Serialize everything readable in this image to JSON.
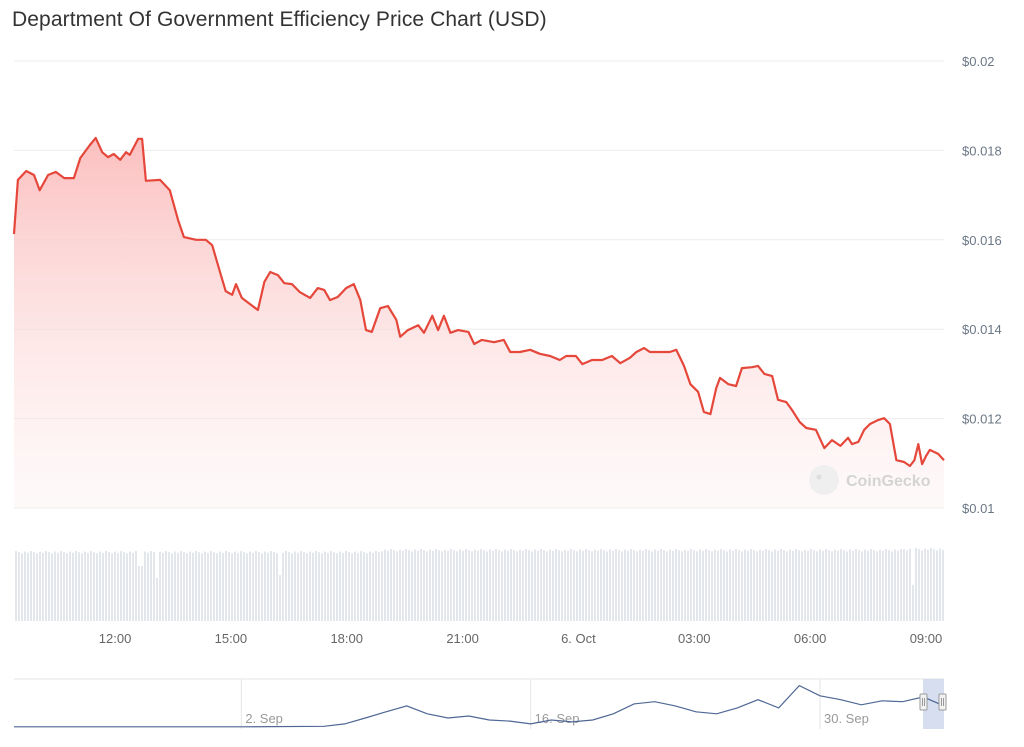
{
  "chart_data": {
    "type": "area",
    "title": "Department Of Government Efficiency Price Chart (USD)",
    "watermark": "CoinGecko",
    "colors": {
      "line": "#e5473b",
      "fill": "#fbcaca",
      "volume": "#e3e6ea",
      "navigator_line": "#4f6795",
      "navigator_mask": "#ccd6eb"
    },
    "grid": true,
    "ylim": [
      0.01,
      0.02
    ],
    "y_ticks": [
      "$0.02",
      "$0.018",
      "$0.016",
      "$0.014",
      "$0.012",
      "$0.01"
    ],
    "y_tick_values": [
      0.02,
      0.018,
      0.016,
      0.014,
      0.012,
      0.01
    ],
    "x_ticks": [
      "12:00",
      "15:00",
      "18:00",
      "21:00",
      "6. Oct",
      "03:00",
      "06:00",
      "09:00"
    ],
    "x_tick_times": [
      "Oct 5 12:00",
      "Oct 5 15:00",
      "Oct 5 18:00",
      "Oct 5 21:00",
      "Oct 6 00:00",
      "Oct 6 03:00",
      "Oct 6 06:00",
      "Oct 6 09:00"
    ],
    "xlim": [
      "Oct 5 09:23",
      "Oct 6 09:28"
    ],
    "series": [
      {
        "points": [
          [
            "Oct 5 09:23",
            0.01613
          ],
          [
            "Oct 5 09:29",
            0.01734
          ],
          [
            "Oct 5 09:42",
            0.01754
          ],
          [
            "Oct 5 09:54",
            0.01745
          ],
          [
            "Oct 5 10:03",
            0.01711
          ],
          [
            "Oct 5 10:16",
            0.01745
          ],
          [
            "Oct 5 10:28",
            0.01752
          ],
          [
            "Oct 5 10:41",
            0.01738
          ],
          [
            "Oct 5 10:56",
            0.01738
          ],
          [
            "Oct 5 11:06",
            0.01783
          ],
          [
            "Oct 5 11:21",
            0.01812
          ],
          [
            "Oct 5 11:30",
            0.01828
          ],
          [
            "Oct 5 11:40",
            0.01796
          ],
          [
            "Oct 5 11:49",
            0.01785
          ],
          [
            "Oct 5 11:58",
            0.01792
          ],
          [
            "Oct 5 12:08",
            0.01779
          ],
          [
            "Oct 5 12:17",
            0.01796
          ],
          [
            "Oct 5 12:23",
            0.0179
          ],
          [
            "Oct 5 12:36",
            0.01826
          ],
          [
            "Oct 5 12:42",
            0.01826
          ],
          [
            "Oct 5 12:48",
            0.01732
          ],
          [
            "Oct 5 13:10",
            0.01734
          ],
          [
            "Oct 5 13:25",
            0.01711
          ],
          [
            "Oct 5 13:38",
            0.01644
          ],
          [
            "Oct 5 13:47",
            0.01606
          ],
          [
            "Oct 5 14:06",
            0.016
          ],
          [
            "Oct 5 14:21",
            0.016
          ],
          [
            "Oct 5 14:31",
            0.01588
          ],
          [
            "Oct 5 14:43",
            0.01528
          ],
          [
            "Oct 5 14:52",
            0.01485
          ],
          [
            "Oct 5 15:02",
            0.01477
          ],
          [
            "Oct 5 15:08",
            0.01501
          ],
          [
            "Oct 5 15:17",
            0.0147
          ],
          [
            "Oct 5 15:30",
            0.01456
          ],
          [
            "Oct 5 15:42",
            0.01443
          ],
          [
            "Oct 5 15:52",
            0.01506
          ],
          [
            "Oct 5 16:01",
            0.01528
          ],
          [
            "Oct 5 16:13",
            0.01521
          ],
          [
            "Oct 5 16:23",
            0.01503
          ],
          [
            "Oct 5 16:35",
            0.01501
          ],
          [
            "Oct 5 16:47",
            0.01483
          ],
          [
            "Oct 5 17:03",
            0.0147
          ],
          [
            "Oct 5 17:15",
            0.01492
          ],
          [
            "Oct 5 17:25",
            0.01488
          ],
          [
            "Oct 5 17:34",
            0.01465
          ],
          [
            "Oct 5 17:46",
            0.01472
          ],
          [
            "Oct 5 17:59",
            0.01492
          ],
          [
            "Oct 5 18:11",
            0.01501
          ],
          [
            "Oct 5 18:21",
            0.01465
          ],
          [
            "Oct 5 18:30",
            0.01398
          ],
          [
            "Oct 5 18:39",
            0.01394
          ],
          [
            "Oct 5 18:52",
            0.01447
          ],
          [
            "Oct 5 19:04",
            0.01452
          ],
          [
            "Oct 5 19:17",
            0.01421
          ],
          [
            "Oct 5 19:23",
            0.01383
          ],
          [
            "Oct 5 19:35",
            0.01398
          ],
          [
            "Oct 5 19:51",
            0.01409
          ],
          [
            "Oct 5 20:00",
            0.01392
          ],
          [
            "Oct 5 20:13",
            0.0143
          ],
          [
            "Oct 5 20:22",
            0.01398
          ],
          [
            "Oct 5 20:31",
            0.0143
          ],
          [
            "Oct 5 20:41",
            0.01392
          ],
          [
            "Oct 5 20:53",
            0.01398
          ],
          [
            "Oct 5 21:09",
            0.01394
          ],
          [
            "Oct 5 21:18",
            0.01367
          ],
          [
            "Oct 5 21:30",
            0.01376
          ],
          [
            "Oct 5 21:49",
            0.01371
          ],
          [
            "Oct 5 22:04",
            0.01376
          ],
          [
            "Oct 5 22:14",
            0.01349
          ],
          [
            "Oct 5 22:29",
            0.01349
          ],
          [
            "Oct 5 22:45",
            0.01354
          ],
          [
            "Oct 5 23:00",
            0.01345
          ],
          [
            "Oct 5 23:16",
            0.0134
          ],
          [
            "Oct 5 23:31",
            0.01331
          ],
          [
            "Oct 5 23:41",
            0.0134
          ],
          [
            "Oct 5 23:56",
            0.0134
          ],
          [
            "Oct 6 00:06",
            0.01322
          ],
          [
            "Oct 6 00:21",
            0.01331
          ],
          [
            "Oct 6 00:37",
            0.01331
          ],
          [
            "Oct 6 00:52",
            0.0134
          ],
          [
            "Oct 6 01:05",
            0.01324
          ],
          [
            "Oct 6 01:20",
            0.01336
          ],
          [
            "Oct 6 01:30",
            0.01349
          ],
          [
            "Oct 6 01:42",
            0.01358
          ],
          [
            "Oct 6 01:51",
            0.01349
          ],
          [
            "Oct 6 02:07",
            0.01349
          ],
          [
            "Oct 6 02:22",
            0.01349
          ],
          [
            "Oct 6 02:32",
            0.01354
          ],
          [
            "Oct 6 02:44",
            0.01318
          ],
          [
            "Oct 6 02:54",
            0.01277
          ],
          [
            "Oct 6 03:06",
            0.0126
          ],
          [
            "Oct 6 03:15",
            0.01215
          ],
          [
            "Oct 6 03:25",
            0.0121
          ],
          [
            "Oct 6 03:34",
            0.01268
          ],
          [
            "Oct 6 03:40",
            0.01291
          ],
          [
            "Oct 6 03:53",
            0.01277
          ],
          [
            "Oct 6 04:05",
            0.01273
          ],
          [
            "Oct 6 04:14",
            0.01313
          ],
          [
            "Oct 6 04:30",
            0.01315
          ],
          [
            "Oct 6 04:39",
            0.01318
          ],
          [
            "Oct 6 04:49",
            0.013
          ],
          [
            "Oct 6 05:01",
            0.01295
          ],
          [
            "Oct 6 05:10",
            0.01242
          ],
          [
            "Oct 6 05:23",
            0.01237
          ],
          [
            "Oct 6 05:32",
            0.01219
          ],
          [
            "Oct 6 05:44",
            0.01192
          ],
          [
            "Oct 6 05:54",
            0.01179
          ],
          [
            "Oct 6 06:09",
            0.01175
          ],
          [
            "Oct 6 06:22",
            0.01134
          ],
          [
            "Oct 6 06:34",
            0.01152
          ],
          [
            "Oct 6 06:47",
            0.01139
          ],
          [
            "Oct 6 06:59",
            0.01157
          ],
          [
            "Oct 6 07:05",
            0.01143
          ],
          [
            "Oct 6 07:15",
            0.01148
          ],
          [
            "Oct 6 07:24",
            0.01175
          ],
          [
            "Oct 6 07:33",
            0.01188
          ],
          [
            "Oct 6 07:46",
            0.01197
          ],
          [
            "Oct 6 07:55",
            0.01201
          ],
          [
            "Oct 6 08:04",
            0.01188
          ],
          [
            "Oct 6 08:14",
            0.01107
          ],
          [
            "Oct 6 08:26",
            0.01103
          ],
          [
            "Oct 6 08:35",
            0.01094
          ],
          [
            "Oct 6 08:42",
            0.01107
          ],
          [
            "Oct 6 08:48",
            0.01143
          ],
          [
            "Oct 6 08:54",
            0.01098
          ],
          [
            "Oct 6 09:00",
            0.01116
          ],
          [
            "Oct 6 09:06",
            0.0113
          ],
          [
            "Oct 6 09:19",
            0.01121
          ],
          [
            "Oct 6 09:28",
            0.01107
          ]
        ]
      }
    ],
    "navigator": {
      "x_ticks": [
        "2. Sep",
        "16. Sep",
        "30. Sep"
      ],
      "x_tick_dates": [
        "Sep 2",
        "Sep 16",
        "Sep 30"
      ],
      "xlim": [
        "Aug 22",
        "Oct 6"
      ],
      "selected_range": [
        "Oct 5",
        "Oct 6"
      ],
      "points": [
        [
          "Aug 22",
          0.0001
        ],
        [
          "Sep 2",
          0.0001
        ],
        [
          "Sep 6",
          0.0003
        ],
        [
          "Sep 7",
          0.0014
        ],
        [
          "Sep 8",
          0.0041
        ],
        [
          "Sep 9",
          0.0069
        ],
        [
          "Sep 10",
          0.0096
        ],
        [
          "Sep 11",
          0.006
        ],
        [
          "Sep 12",
          0.0041
        ],
        [
          "Sep 13",
          0.005
        ],
        [
          "Sep 14",
          0.0032
        ],
        [
          "Sep 15",
          0.0027
        ],
        [
          "Sep 16",
          0.0014
        ],
        [
          "Sep 17",
          0.0032
        ],
        [
          "Sep 18",
          0.0023
        ],
        [
          "Sep 19",
          0.0032
        ],
        [
          "Sep 20",
          0.006
        ],
        [
          "Sep 21",
          0.0105
        ],
        [
          "Sep 22",
          0.0115
        ],
        [
          "Sep 23",
          0.0096
        ],
        [
          "Sep 24",
          0.0069
        ],
        [
          "Sep 25",
          0.006
        ],
        [
          "Sep 26",
          0.0087
        ],
        [
          "Sep 27",
          0.0124
        ],
        [
          "Sep 28",
          0.0087
        ],
        [
          "Sep 29",
          0.0188
        ],
        [
          "Sep 30",
          0.0142
        ],
        [
          "Oct 1",
          0.0124
        ],
        [
          "Oct 2",
          0.0101
        ],
        [
          "Oct 3",
          0.0119
        ],
        [
          "Oct 4",
          0.0115
        ],
        [
          "Oct 5",
          0.0137
        ],
        [
          "Oct 6",
          0.0096
        ]
      ]
    }
  }
}
